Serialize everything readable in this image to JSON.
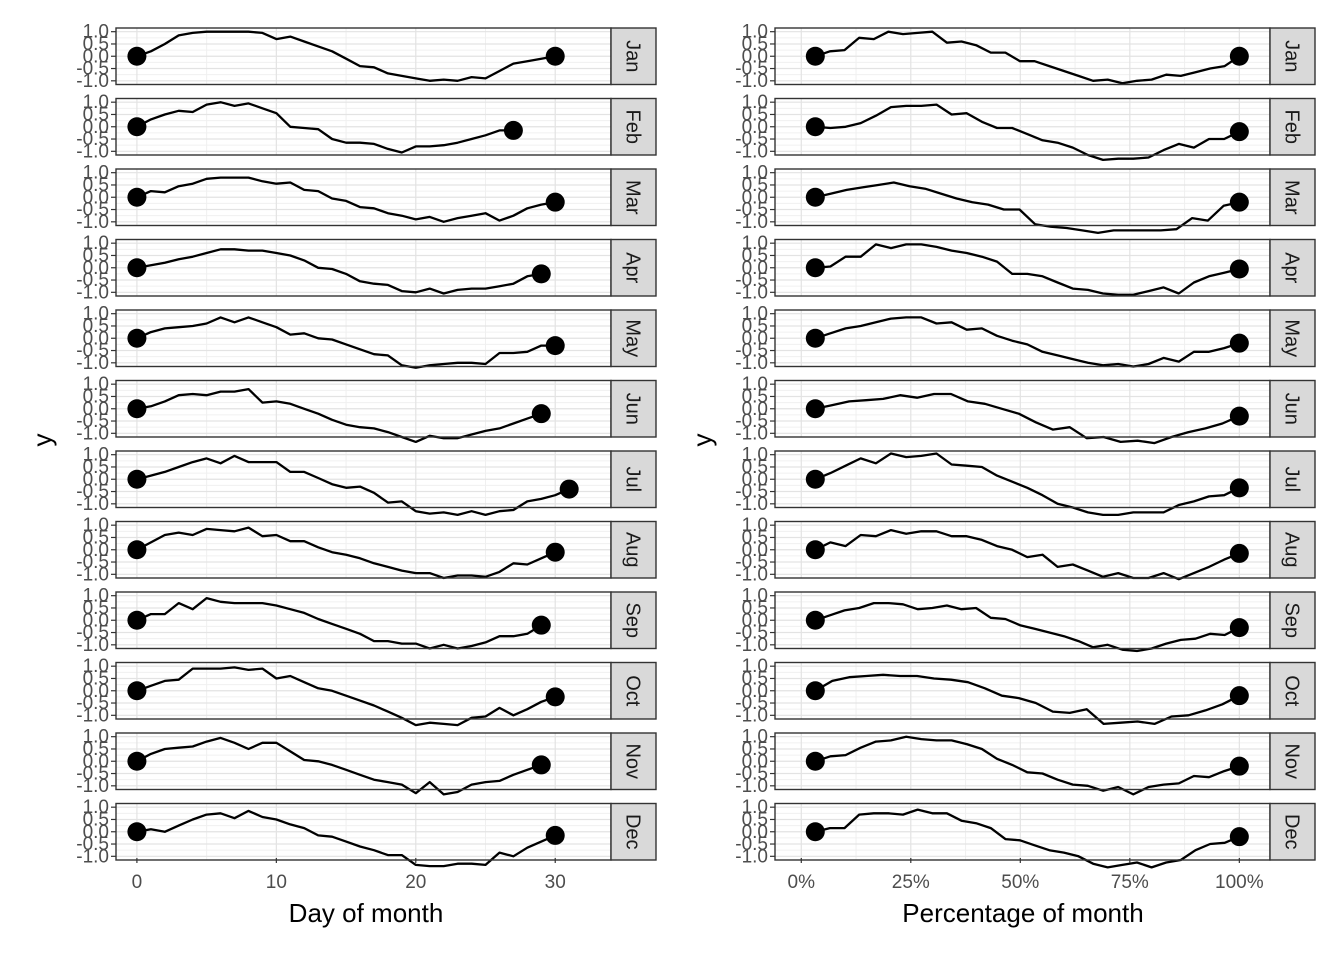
{
  "chart_data": [
    {
      "type": "line",
      "panel": "left",
      "xlabel": "Day of month",
      "ylabel": "y",
      "xlim": [
        -1.5,
        34
      ],
      "xticks": [
        0,
        10,
        20,
        30
      ],
      "xtick_labels": [
        "0",
        "10",
        "20",
        "30"
      ],
      "ylim": [
        -1.15,
        1.15
      ],
      "yticks": [
        -1.0,
        -0.5,
        0.0,
        0.5,
        1.0
      ],
      "ytick_labels": [
        "-1.0",
        "-0.5",
        "0.0",
        "0.5",
        "1.0"
      ],
      "grid": true,
      "facets": [
        {
          "label": "Jan",
          "y": [
            0.0,
            0.2,
            0.5,
            0.85,
            0.95,
            1.0,
            1.0,
            1.0,
            1.0,
            0.95,
            0.7,
            0.8,
            0.6,
            0.4,
            0.2,
            -0.1,
            -0.4,
            -0.45,
            -0.7,
            -0.8,
            -0.9,
            -1.0,
            -0.95,
            -1.0,
            -0.85,
            -0.9,
            -0.6,
            -0.3,
            -0.2,
            -0.1,
            0.0
          ]
        },
        {
          "label": "Feb",
          "y": [
            0.0,
            0.3,
            0.5,
            0.65,
            0.6,
            0.9,
            1.0,
            0.85,
            0.95,
            0.75,
            0.55,
            0.0,
            -0.05,
            -0.1,
            -0.5,
            -0.65,
            -0.65,
            -0.7,
            -0.9,
            -1.05,
            -0.8,
            -0.8,
            -0.75,
            -0.65,
            -0.5,
            -0.35,
            -0.15,
            -0.15
          ]
        },
        {
          "label": "Mar",
          "y": [
            0.0,
            0.25,
            0.2,
            0.45,
            0.55,
            0.75,
            0.8,
            0.8,
            0.8,
            0.65,
            0.55,
            0.6,
            0.3,
            0.25,
            -0.05,
            -0.15,
            -0.4,
            -0.45,
            -0.65,
            -0.75,
            -0.9,
            -0.8,
            -1.0,
            -0.85,
            -0.75,
            -0.65,
            -0.95,
            -0.75,
            -0.45,
            -0.3,
            -0.2
          ]
        },
        {
          "label": "Apr",
          "y": [
            0.0,
            0.1,
            0.2,
            0.35,
            0.45,
            0.6,
            0.75,
            0.75,
            0.7,
            0.7,
            0.6,
            0.5,
            0.3,
            0.0,
            -0.05,
            -0.25,
            -0.55,
            -0.65,
            -0.7,
            -0.95,
            -1.0,
            -0.85,
            -1.05,
            -0.9,
            -0.85,
            -0.85,
            -0.75,
            -0.65,
            -0.35,
            -0.25
          ]
        },
        {
          "label": "May",
          "y": [
            0.0,
            0.25,
            0.4,
            0.45,
            0.5,
            0.6,
            0.85,
            0.65,
            0.85,
            0.65,
            0.45,
            0.15,
            0.2,
            0.0,
            -0.05,
            -0.25,
            -0.45,
            -0.65,
            -0.7,
            -1.1,
            -1.2,
            -1.1,
            -1.05,
            -1.0,
            -1.0,
            -1.05,
            -0.6,
            -0.6,
            -0.55,
            -0.3,
            -0.3
          ]
        },
        {
          "label": "Jun",
          "y": [
            0.0,
            0.1,
            0.3,
            0.55,
            0.6,
            0.55,
            0.7,
            0.7,
            0.8,
            0.25,
            0.3,
            0.2,
            0.0,
            -0.2,
            -0.45,
            -0.65,
            -0.75,
            -0.8,
            -0.95,
            -1.15,
            -1.35,
            -1.1,
            -1.2,
            -1.2,
            -1.05,
            -0.9,
            -0.8,
            -0.6,
            -0.4,
            -0.2
          ]
        },
        {
          "label": "Jul",
          "y": [
            0.0,
            0.15,
            0.3,
            0.5,
            0.7,
            0.85,
            0.65,
            0.95,
            0.7,
            0.7,
            0.7,
            0.3,
            0.3,
            0.05,
            -0.2,
            -0.35,
            -0.3,
            -0.55,
            -0.95,
            -0.9,
            -1.3,
            -1.4,
            -1.35,
            -1.45,
            -1.3,
            -1.45,
            -1.3,
            -1.25,
            -0.9,
            -0.8,
            -0.65,
            -0.4
          ]
        },
        {
          "label": "Aug",
          "y": [
            0.0,
            0.3,
            0.6,
            0.7,
            0.6,
            0.85,
            0.8,
            0.75,
            0.9,
            0.55,
            0.6,
            0.35,
            0.35,
            0.1,
            -0.1,
            -0.2,
            -0.35,
            -0.55,
            -0.7,
            -0.85,
            -0.95,
            -0.95,
            -1.15,
            -1.05,
            -1.05,
            -1.1,
            -0.9,
            -0.55,
            -0.6,
            -0.35,
            -0.1
          ]
        },
        {
          "label": "Sep",
          "y": [
            0.0,
            0.25,
            0.25,
            0.7,
            0.45,
            0.9,
            0.75,
            0.7,
            0.7,
            0.7,
            0.6,
            0.45,
            0.3,
            0.05,
            -0.15,
            -0.35,
            -0.55,
            -0.85,
            -0.85,
            -0.95,
            -0.95,
            -1.15,
            -1.0,
            -1.15,
            -1.05,
            -0.9,
            -0.65,
            -0.65,
            -0.55,
            -0.2
          ]
        },
        {
          "label": "Oct",
          "y": [
            0.0,
            0.2,
            0.4,
            0.45,
            0.9,
            0.9,
            0.9,
            0.95,
            0.85,
            0.9,
            0.5,
            0.6,
            0.35,
            0.1,
            0.0,
            -0.2,
            -0.4,
            -0.6,
            -0.85,
            -1.1,
            -1.4,
            -1.3,
            -1.35,
            -1.4,
            -1.1,
            -1.05,
            -0.7,
            -1.0,
            -0.75,
            -0.45,
            -0.25
          ]
        },
        {
          "label": "Nov",
          "y": [
            0.0,
            0.3,
            0.5,
            0.55,
            0.6,
            0.8,
            0.95,
            0.75,
            0.5,
            0.75,
            0.75,
            0.4,
            0.05,
            0.0,
            -0.15,
            -0.35,
            -0.55,
            -0.75,
            -0.85,
            -0.95,
            -1.3,
            -0.85,
            -1.35,
            -1.25,
            -0.95,
            -0.85,
            -0.8,
            -0.55,
            -0.35,
            -0.15
          ]
        },
        {
          "label": "Dec",
          "y": [
            0.0,
            0.1,
            0.0,
            0.25,
            0.5,
            0.7,
            0.75,
            0.55,
            0.85,
            0.6,
            0.5,
            0.3,
            0.15,
            -0.15,
            -0.2,
            -0.4,
            -0.6,
            -0.75,
            -0.95,
            -0.95,
            -1.35,
            -1.4,
            -1.4,
            -1.3,
            -1.3,
            -1.35,
            -0.85,
            -1.0,
            -0.65,
            -0.4,
            -0.15
          ]
        }
      ]
    },
    {
      "type": "line",
      "panel": "right",
      "xlabel": "Percentage of month",
      "ylabel": "y",
      "xlim": [
        -0.06,
        1.07
      ],
      "xticks": [
        0,
        0.25,
        0.5,
        0.75,
        1.0
      ],
      "xtick_labels": [
        "0%",
        "25%",
        "50%",
        "75%",
        "100%"
      ],
      "ylim": [
        -1.15,
        1.15
      ],
      "yticks": [
        -1.0,
        -0.5,
        0.0,
        0.5,
        1.0
      ],
      "ytick_labels": [
        "-1.0",
        "-0.5",
        "0.0",
        "0.5",
        "1.0"
      ],
      "grid": true,
      "x_start": 0.032,
      "x_end": 1.0,
      "facets": [
        {
          "label": "Jan",
          "y": [
            0.0,
            0.2,
            0.25,
            0.75,
            0.7,
            1.0,
            0.9,
            0.95,
            1.0,
            0.55,
            0.6,
            0.45,
            0.15,
            0.15,
            -0.2,
            -0.2,
            -0.4,
            -0.6,
            -0.8,
            -1.0,
            -0.95,
            -1.1,
            -1.0,
            -0.95,
            -0.75,
            -0.8,
            -0.65,
            -0.5,
            -0.4,
            0.0
          ]
        },
        {
          "label": "Feb",
          "y": [
            0.0,
            -0.05,
            0.0,
            0.15,
            0.45,
            0.8,
            0.85,
            0.85,
            0.9,
            0.5,
            0.55,
            0.2,
            -0.05,
            -0.05,
            -0.3,
            -0.55,
            -0.65,
            -0.85,
            -1.15,
            -1.35,
            -1.3,
            -1.3,
            -1.25,
            -0.95,
            -0.7,
            -0.85,
            -0.5,
            -0.5,
            -0.2
          ]
        },
        {
          "label": "Mar",
          "y": [
            0.0,
            0.15,
            0.3,
            0.4,
            0.5,
            0.6,
            0.45,
            0.35,
            0.15,
            -0.05,
            -0.2,
            -0.3,
            -0.5,
            -0.5,
            -1.1,
            -1.2,
            -1.25,
            -1.35,
            -1.45,
            -1.35,
            -1.35,
            -1.35,
            -1.35,
            -1.3,
            -0.85,
            -0.95,
            -0.35,
            -0.2
          ]
        },
        {
          "label": "Apr",
          "y": [
            0.0,
            0.05,
            0.45,
            0.45,
            0.95,
            0.8,
            0.95,
            0.95,
            0.85,
            0.7,
            0.6,
            0.45,
            0.25,
            -0.25,
            -0.25,
            -0.35,
            -0.6,
            -0.85,
            -0.9,
            -1.05,
            -1.1,
            -1.1,
            -0.95,
            -0.8,
            -1.05,
            -0.6,
            -0.35,
            -0.2,
            -0.05
          ]
        },
        {
          "label": "May",
          "y": [
            0.0,
            0.2,
            0.4,
            0.5,
            0.65,
            0.8,
            0.85,
            0.85,
            0.6,
            0.65,
            0.35,
            0.4,
            0.1,
            -0.1,
            -0.25,
            -0.55,
            -0.7,
            -0.85,
            -1.0,
            -1.1,
            -1.05,
            -1.15,
            -1.05,
            -0.8,
            -0.95,
            -0.55,
            -0.55,
            -0.4,
            -0.2
          ]
        },
        {
          "label": "Jun",
          "y": [
            0.0,
            0.15,
            0.3,
            0.35,
            0.4,
            0.55,
            0.45,
            0.6,
            0.6,
            0.3,
            0.2,
            0.0,
            -0.2,
            -0.55,
            -0.85,
            -0.75,
            -1.2,
            -1.15,
            -1.35,
            -1.3,
            -1.4,
            -1.15,
            -0.95,
            -0.8,
            -0.6,
            -0.3
          ]
        },
        {
          "label": "Jul",
          "y": [
            0.0,
            0.25,
            0.55,
            0.85,
            0.65,
            1.05,
            0.9,
            0.95,
            1.05,
            0.6,
            0.55,
            0.5,
            0.15,
            -0.1,
            -0.35,
            -0.65,
            -1.0,
            -1.15,
            -1.35,
            -1.45,
            -1.45,
            -1.35,
            -1.35,
            -1.35,
            -1.05,
            -0.9,
            -0.7,
            -0.65,
            -0.35
          ]
        },
        {
          "label": "Aug",
          "y": [
            0.0,
            0.3,
            0.15,
            0.6,
            0.55,
            0.8,
            0.65,
            0.75,
            0.75,
            0.55,
            0.55,
            0.4,
            0.15,
            0.0,
            -0.3,
            -0.2,
            -0.7,
            -0.6,
            -0.85,
            -1.1,
            -0.95,
            -1.15,
            -1.15,
            -0.95,
            -1.2,
            -0.95,
            -0.7,
            -0.4,
            -0.15
          ]
        },
        {
          "label": "Sep",
          "y": [
            0.0,
            0.2,
            0.4,
            0.5,
            0.7,
            0.7,
            0.65,
            0.45,
            0.5,
            0.6,
            0.45,
            0.5,
            0.1,
            0.05,
            -0.2,
            -0.35,
            -0.5,
            -0.65,
            -0.85,
            -1.1,
            -1.0,
            -1.2,
            -1.25,
            -1.15,
            -0.95,
            -0.8,
            -0.75,
            -0.55,
            -0.6,
            -0.3
          ]
        },
        {
          "label": "Oct",
          "y": [
            0.0,
            0.4,
            0.55,
            0.6,
            0.65,
            0.6,
            0.6,
            0.5,
            0.45,
            0.35,
            0.1,
            -0.2,
            -0.3,
            -0.5,
            -0.85,
            -0.9,
            -0.75,
            -1.35,
            -1.3,
            -1.25,
            -1.35,
            -1.05,
            -1.0,
            -0.8,
            -0.55,
            -0.2
          ]
        },
        {
          "label": "Nov",
          "y": [
            0.0,
            0.2,
            0.25,
            0.55,
            0.8,
            0.85,
            1.0,
            0.9,
            0.85,
            0.85,
            0.7,
            0.5,
            0.1,
            -0.15,
            -0.45,
            -0.5,
            -0.75,
            -0.95,
            -1.0,
            -1.2,
            -1.05,
            -1.35,
            -1.05,
            -0.95,
            -0.9,
            -0.6,
            -0.65,
            -0.4,
            -0.2
          ]
        },
        {
          "label": "Dec",
          "y": [
            0.0,
            0.15,
            0.15,
            0.7,
            0.75,
            0.75,
            0.7,
            0.9,
            0.75,
            0.75,
            0.45,
            0.35,
            0.15,
            -0.3,
            -0.35,
            -0.55,
            -0.75,
            -0.85,
            -1.0,
            -1.3,
            -1.45,
            -1.35,
            -1.25,
            -1.5,
            -1.25,
            -1.15,
            -0.75,
            -0.5,
            -0.45,
            -0.2
          ]
        }
      ]
    }
  ]
}
